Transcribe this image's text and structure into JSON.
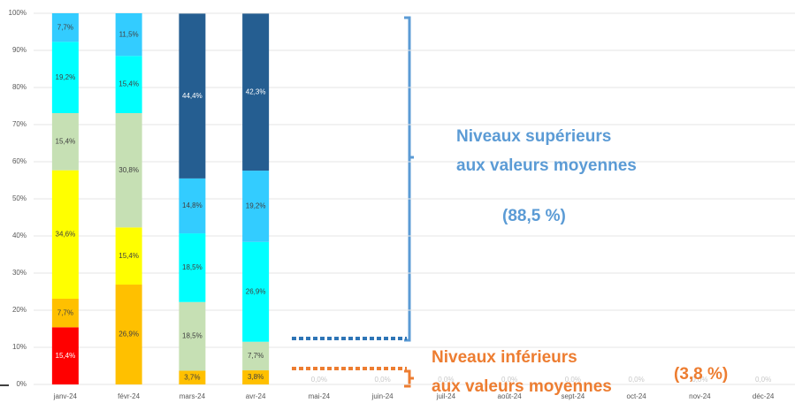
{
  "chart_data": {
    "type": "stacked_bar",
    "categories": [
      "janv-24",
      "févr-24",
      "mars-24",
      "avr-24",
      "mai-24",
      "juin-24",
      "juil-24",
      "août-24",
      "sept-24",
      "oct-24",
      "nov-24",
      "déc-24"
    ],
    "ylim": [
      0,
      100
    ],
    "yticks": [
      {
        "value": 0,
        "label": "0%"
      },
      {
        "value": 10,
        "label": "10%"
      },
      {
        "value": 20,
        "label": "20%"
      },
      {
        "value": 30,
        "label": "30%"
      },
      {
        "value": 40,
        "label": "40%"
      },
      {
        "value": 50,
        "label": "50%"
      },
      {
        "value": 60,
        "label": "60%"
      },
      {
        "value": 70,
        "label": "70%"
      },
      {
        "value": 80,
        "label": "80%"
      },
      {
        "value": 90,
        "label": "90%"
      },
      {
        "value": 100,
        "label": "100%"
      }
    ],
    "series": [
      {
        "color": "#ff0000",
        "values": [
          15.4,
          null,
          null,
          null,
          0,
          0,
          0,
          0,
          0,
          0,
          0,
          0
        ],
        "value_labels": [
          "15,4%",
          null,
          null,
          null,
          "0,0%",
          "0,0%",
          "0,0%",
          "0,0%",
          "0,0%",
          "0,0%",
          "0,0%",
          "0,0%"
        ]
      },
      {
        "color": "#ffc000",
        "values": [
          7.7,
          26.9,
          3.7,
          3.8,
          null,
          null,
          null,
          null,
          null,
          null,
          null,
          null
        ],
        "value_labels": [
          "7,7%",
          "26,9%",
          "3,7%",
          "3,8%",
          null,
          null,
          null,
          null,
          null,
          null,
          null,
          null
        ]
      },
      {
        "color": "#ffff00",
        "values": [
          34.6,
          15.4,
          null,
          null,
          null,
          null,
          null,
          null,
          null,
          null,
          null,
          null
        ],
        "value_labels": [
          "34,6%",
          "15,4%",
          null,
          null,
          null,
          null,
          null,
          null,
          null,
          null,
          null,
          null
        ]
      },
      {
        "color": "#c6e0b4",
        "values": [
          15.4,
          30.8,
          18.5,
          7.7,
          null,
          null,
          null,
          null,
          null,
          null,
          null,
          null
        ],
        "value_labels": [
          "15,4%",
          "30,8%",
          "18,5%",
          "7,7%",
          null,
          null,
          null,
          null,
          null,
          null,
          null,
          null
        ]
      },
      {
        "color": "#00ffff",
        "values": [
          19.2,
          15.4,
          18.5,
          26.9,
          null,
          null,
          null,
          null,
          null,
          null,
          null,
          null
        ],
        "value_labels": [
          "19,2%",
          "15,4%",
          "18,5%",
          "26,9%",
          null,
          null,
          null,
          null,
          null,
          null,
          null,
          null
        ]
      },
      {
        "color": "#33ccff",
        "values": [
          7.7,
          11.5,
          14.8,
          19.2,
          null,
          null,
          null,
          null,
          null,
          null,
          null,
          null
        ],
        "value_labels": [
          "7,7%",
          "11,5%",
          "14,8%",
          "19,2%",
          null,
          null,
          null,
          null,
          null,
          null,
          null,
          null
        ]
      },
      {
        "color": "#255e91",
        "values": [
          null,
          null,
          44.4,
          42.3,
          null,
          null,
          null,
          null,
          null,
          null,
          null,
          null
        ],
        "value_labels": [
          null,
          null,
          "44,4%",
          "42,3%",
          null,
          null,
          null,
          null,
          null,
          null,
          null,
          null
        ]
      }
    ],
    "annotations": [
      "Niveaux supérieurs",
      "aux valeurs moyennes",
      "(88,5 %)",
      "Niveaux inférieurs",
      "aux valeurs moyennes",
      "(3,8 %)"
    ]
  }
}
